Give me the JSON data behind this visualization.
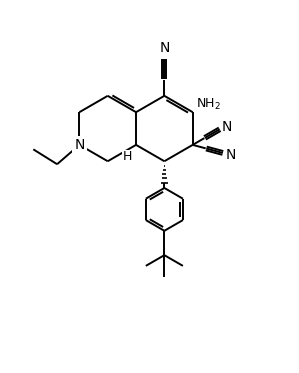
{
  "bg_color": "#ffffff",
  "line_color": "#000000",
  "line_width": 1.4,
  "font_size": 9,
  "figsize": [
    2.99,
    3.73
  ],
  "dpi": 100,
  "xlim": [
    0,
    10
  ],
  "ylim": [
    0,
    12.5
  ]
}
